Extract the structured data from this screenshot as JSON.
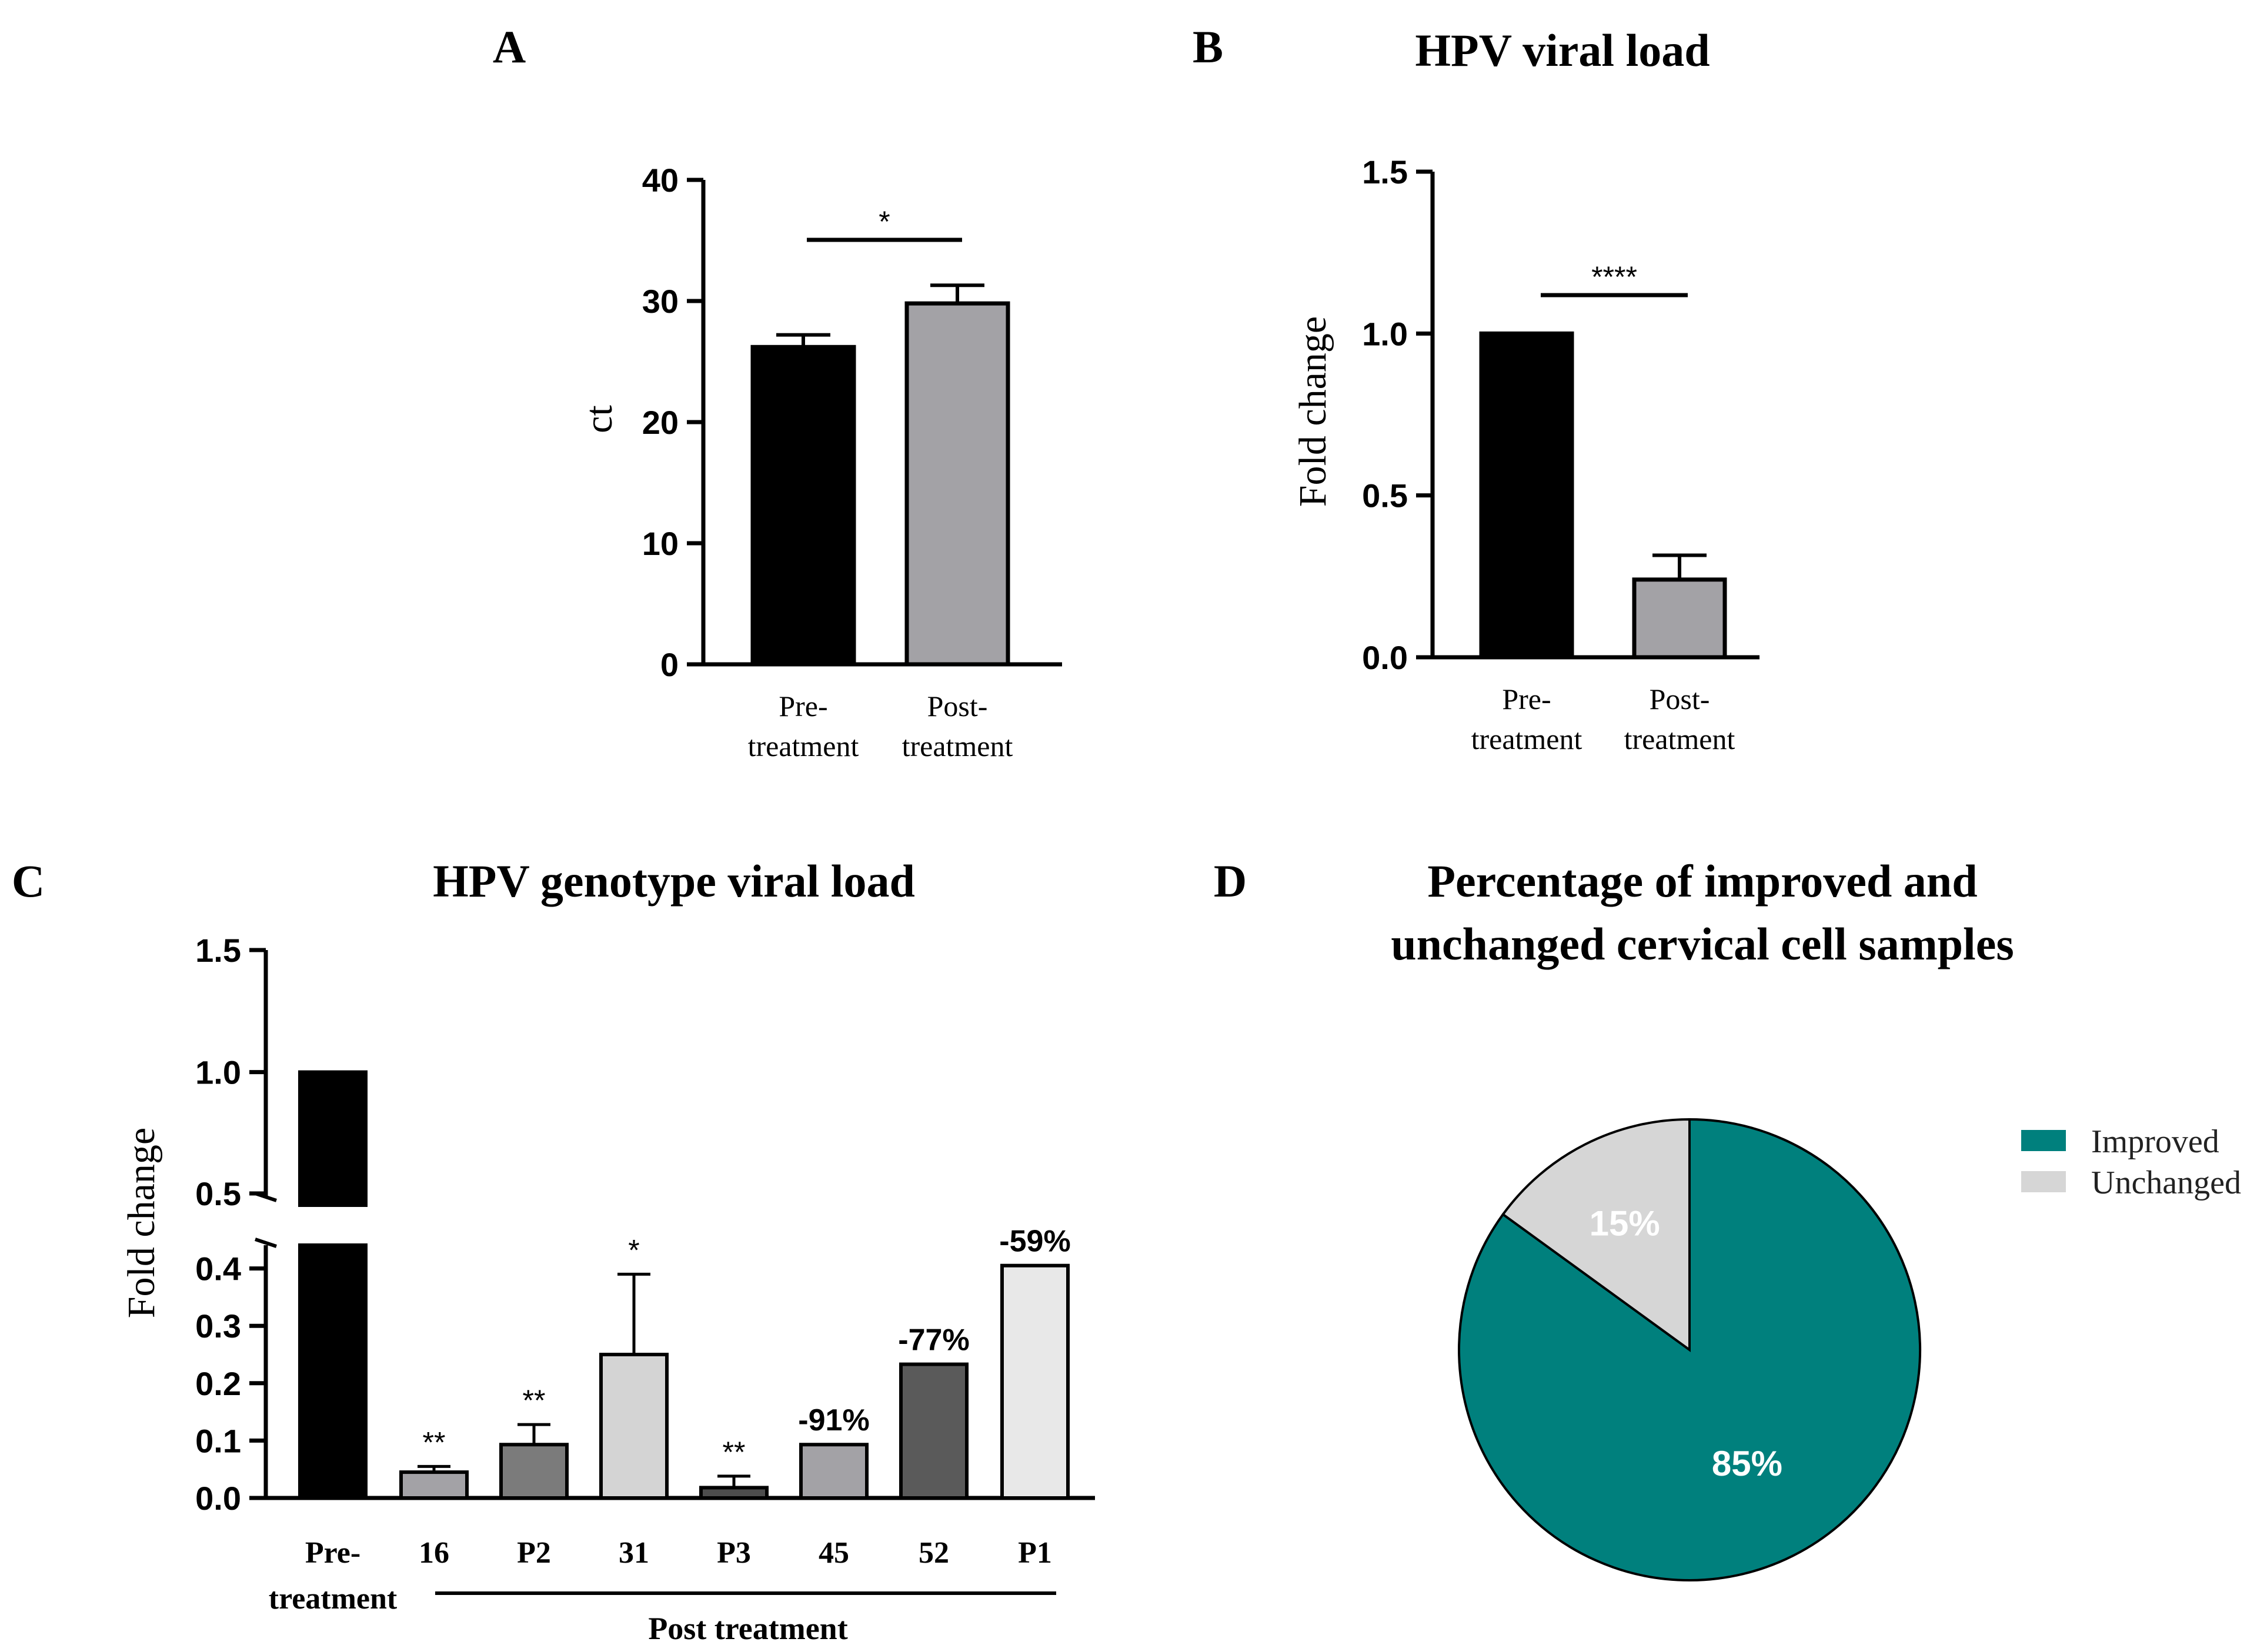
{
  "chart_data": [
    {
      "panel": "A",
      "type": "bar",
      "title": "",
      "ylabel": "ct",
      "ylim": [
        0,
        40
      ],
      "yticks": [
        "0",
        "10",
        "20",
        "30",
        "40"
      ],
      "categories": [
        [
          "Pre-",
          "treatment"
        ],
        [
          "Post-",
          "treatment"
        ]
      ],
      "values": [
        26.2,
        29.8
      ],
      "errors": [
        1.0,
        1.5
      ],
      "colors": [
        "#000000",
        "#a3a2a6"
      ],
      "significance": "*"
    },
    {
      "panel": "B",
      "type": "bar",
      "title": "HPV viral load",
      "ylabel": "Fold change",
      "ylim": [
        0,
        1.5
      ],
      "yticks": [
        "0.0",
        "0.5",
        "1.0",
        "1.5"
      ],
      "categories": [
        [
          "Pre-",
          "treatment"
        ],
        [
          "Post-",
          "treatment"
        ]
      ],
      "values": [
        1.0,
        0.24
      ],
      "errors": [
        0,
        0.075
      ],
      "colors": [
        "#000000",
        "#a3a2a6"
      ],
      "significance": "****"
    },
    {
      "panel": "C",
      "type": "bar",
      "title": "HPV genotype viral load",
      "ylabel": "Fold change",
      "ylim": [
        0,
        1.5
      ],
      "axis_break": [
        0.45,
        0.5
      ],
      "yticks_lower": [
        "0.0",
        "0.1",
        "0.2",
        "0.3",
        "0.4"
      ],
      "yticks_upper": [
        "0.5",
        "1.0",
        "1.5"
      ],
      "categories": [
        [
          "Pre-",
          "treatment"
        ],
        [
          "16"
        ],
        [
          "P2"
        ],
        [
          "31"
        ],
        [
          "P3"
        ],
        [
          "45"
        ],
        [
          "52"
        ],
        [
          "P1"
        ]
      ],
      "values": [
        1.0,
        0.045,
        0.093,
        0.25,
        0.018,
        0.093,
        0.233,
        0.405
      ],
      "errors": [
        0,
        0.01,
        0.035,
        0.14,
        0.02,
        0,
        0,
        0
      ],
      "colors": [
        "#000000",
        "#a3a2a6",
        "#7b7b7b",
        "#d4d4d4",
        "#4d4d4d",
        "#a3a2a6",
        "#5a5a5a",
        "#e8e8e8"
      ],
      "annotations": [
        "",
        "**",
        "**",
        "*",
        "**",
        "-91%",
        "-77%",
        "-59%"
      ],
      "group_label": "Post treatment"
    },
    {
      "panel": "D",
      "type": "pie",
      "title": [
        "Percentage of  improved and",
        "unchanged cervical cell samples"
      ],
      "slices": [
        {
          "label": "Improved",
          "value": 85,
          "text": "85%",
          "color": "#00807d"
        },
        {
          "label": "Unchanged",
          "value": 15,
          "text": "15%",
          "color": "#d6d6d6"
        }
      ],
      "legend_position": "right"
    }
  ]
}
